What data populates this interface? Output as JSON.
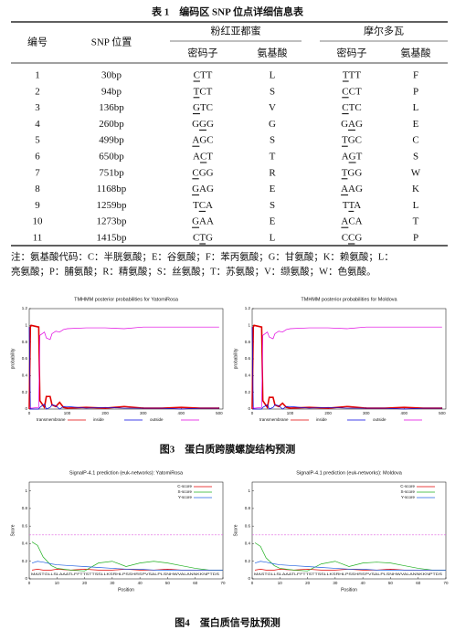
{
  "table_title": "表 1　编码区 SNP 位点详细信息表",
  "table": {
    "headers": [
      "编号",
      "SNP 位置",
      "粉红亚都蜜",
      "摩尔多瓦"
    ],
    "subheaders": [
      "密码子",
      "氨基酸",
      "密码子",
      "氨基酸"
    ],
    "rows": [
      [
        "1",
        "30bp",
        "CTT",
        "L",
        "TTT",
        "F"
      ],
      [
        "2",
        "94bp",
        "TCT",
        "S",
        "CCT",
        "P"
      ],
      [
        "3",
        "136bp",
        "GTC",
        "V",
        "CTC",
        "L"
      ],
      [
        "4",
        "260bp",
        "GGG",
        "G",
        "GAG",
        "E"
      ],
      [
        "5",
        "499bp",
        "AGC",
        "S",
        "TGC",
        "C"
      ],
      [
        "6",
        "650bp",
        "ACT",
        "T",
        "AGT",
        "S"
      ],
      [
        "7",
        "751bp",
        "CGG",
        "R",
        "TGG",
        "W"
      ],
      [
        "8",
        "1168bp",
        "GAG",
        "E",
        "AAG",
        "K"
      ],
      [
        "9",
        "1259bp",
        "TCA",
        "S",
        "TTA",
        "L"
      ],
      [
        "10",
        "1273bp",
        "GAA",
        "E",
        "ACA",
        "T"
      ],
      [
        "11",
        "1415bp",
        "CTG",
        "L",
        "CCG",
        "P"
      ]
    ],
    "underlined_base": [
      0,
      0,
      0,
      1,
      0,
      1,
      0,
      0,
      1,
      0,
      1
    ],
    "note": [
      "注：氨基酸代码：C：半胱氨酸；E：谷氨酸；F：苯丙氨酸；G：甘氨酸；K：赖氨酸；L：",
      "亮氨酸；P：脯氨酸；R：精氨酸；S：丝氨酸；T：苏氨酸；V：缬氨酸；W：色氨酸。"
    ]
  },
  "figures": [
    {
      "caption": "图3　蛋白质跨膜螺旋结构预测",
      "charts": [
        {
          "type": "line",
          "title": "TMHMM posterior probabilities for YatomiRosa",
          "ylabel": "probability",
          "xlim": [
            0,
            510
          ],
          "ylim": [
            0,
            1.2
          ],
          "xticks": [
            0,
            100,
            200,
            300,
            400,
            500
          ],
          "yticks": [
            0,
            0.2,
            0.4,
            0.6,
            0.8,
            1,
            1.2
          ],
          "x": [
            0,
            3,
            5,
            25,
            28,
            40,
            45,
            55,
            60,
            70,
            80,
            90,
            100,
            150,
            200,
            250,
            300,
            350,
            400,
            450,
            500
          ],
          "series": [
            {
              "name": "transmembrane",
              "color": "#e00000",
              "values": [
                0,
                0.98,
                1,
                0.98,
                0.1,
                0.02,
                0.15,
                0.15,
                0.05,
                0.03,
                0.08,
                0.02,
                0.01,
                0.02,
                0.01,
                0.03,
                0.01,
                0.01,
                0.02,
                0.01,
                0.01
              ]
            },
            {
              "name": "inside",
              "color": "#0000e0",
              "values": [
                0.98,
                0,
                0,
                0,
                0.02,
                0.06,
                0,
                0.02,
                0.05,
                0.04,
                0,
                0.03,
                0.03,
                0.01,
                0.02,
                0.01,
                0.01,
                0.01,
                0,
                0.01,
                0.01
              ]
            },
            {
              "name": "outside",
              "color": "#e000e0",
              "values": [
                0.02,
                0.02,
                0.01,
                0.02,
                0.88,
                0.92,
                0.85,
                0.83,
                0.9,
                0.93,
                0.92,
                0.95,
                0.96,
                0.97,
                0.97,
                0.96,
                0.98,
                0.98,
                0.98,
                0.98,
                0.98
              ]
            }
          ]
        },
        {
          "type": "line",
          "title": "TMHMM posterior probabilities for Moldova",
          "ylabel": "probability",
          "xlim": [
            0,
            510
          ],
          "ylim": [
            0,
            1.2
          ],
          "xticks": [
            0,
            100,
            200,
            300,
            400,
            500
          ],
          "yticks": [
            0,
            0.2,
            0.4,
            0.6,
            0.8,
            1,
            1.2
          ],
          "x": [
            0,
            3,
            5,
            25,
            28,
            40,
            45,
            55,
            60,
            70,
            80,
            90,
            100,
            150,
            200,
            250,
            300,
            350,
            400,
            450,
            500
          ],
          "series": [
            {
              "name": "transmembrane",
              "color": "#e00000",
              "values": [
                0,
                0.98,
                1,
                0.98,
                0.1,
                0.02,
                0.14,
                0.14,
                0.05,
                0.03,
                0.07,
                0.02,
                0.01,
                0.02,
                0.01,
                0.03,
                0.01,
                0.01,
                0.02,
                0.01,
                0.01
              ]
            },
            {
              "name": "inside",
              "color": "#0000e0",
              "values": [
                0.98,
                0,
                0,
                0,
                0.02,
                0.05,
                0,
                0.02,
                0.05,
                0.04,
                0,
                0.03,
                0.03,
                0.01,
                0.02,
                0.01,
                0.01,
                0.01,
                0,
                0.01,
                0.01
              ]
            },
            {
              "name": "outside",
              "color": "#e000e0",
              "values": [
                0.02,
                0.02,
                0.01,
                0.02,
                0.88,
                0.92,
                0.86,
                0.84,
                0.9,
                0.93,
                0.92,
                0.95,
                0.96,
                0.97,
                0.97,
                0.96,
                0.98,
                0.98,
                0.98,
                0.98,
                0.98
              ]
            }
          ]
        }
      ]
    },
    {
      "caption": "图4　蛋白质信号肽预测",
      "charts": [
        {
          "type": "line",
          "title": "SignalP-4.1 prediction (euk-networks): YatomiRosa",
          "ylabel": "Score",
          "xlabel": "Position",
          "sequence": "MASTGLLSLAAATLFFTTSTTSSLLKSRHLPSSHRSPVSALPLSNHWVALANNKKNPTDS",
          "xlim": [
            0,
            70
          ],
          "ylim": [
            0,
            1.1
          ],
          "xticks": [
            0,
            10,
            20,
            30,
            40,
            50,
            60,
            70
          ],
          "yticks": [
            0,
            0.2,
            0.4,
            0.6,
            0.8,
            1
          ],
          "threshold": 0.5,
          "x": [
            1,
            3,
            5,
            8,
            10,
            15,
            20,
            25,
            30,
            35,
            40,
            45,
            50,
            55,
            60,
            65,
            70
          ],
          "series": [
            {
              "name": "C-score",
              "color": "#e00000",
              "values": [
                0.1,
                0.11,
                0.1,
                0.1,
                0.11,
                0.1,
                0.11,
                0.1,
                0.1,
                0.11,
                0.1,
                0.1,
                0.11,
                0.1,
                0.1,
                0.1,
                0.1
              ]
            },
            {
              "name": "S-score",
              "color": "#20b020",
              "values": [
                0.42,
                0.38,
                0.25,
                0.15,
                0.12,
                0.1,
                0.09,
                0.18,
                0.2,
                0.14,
                0.18,
                0.2,
                0.18,
                0.15,
                0.12,
                0.1,
                0.1
              ]
            },
            {
              "name": "Y-score",
              "color": "#2060e0",
              "values": [
                0.18,
                0.2,
                0.19,
                0.17,
                0.16,
                0.15,
                0.14,
                0.13,
                0.12,
                0.11,
                0.11,
                0.1,
                0.1,
                0.1,
                0.1,
                0.1,
                0.1
              ]
            }
          ]
        },
        {
          "type": "line",
          "title": "SignalP-4.1 prediction (euk-networks): Moldova",
          "ylabel": "Score",
          "xlabel": "Position",
          "sequence": "MASTGLLSLAAATLFFTTSTTSSLLKSRHLPSSHRSPVSALPLSNHWVALANNKKNPTDS",
          "xlim": [
            0,
            70
          ],
          "ylim": [
            0,
            1.1
          ],
          "xticks": [
            0,
            10,
            20,
            30,
            40,
            50,
            60,
            70
          ],
          "yticks": [
            0,
            0.2,
            0.4,
            0.6,
            0.8,
            1
          ],
          "threshold": 0.5,
          "x": [
            1,
            3,
            5,
            8,
            10,
            15,
            20,
            25,
            30,
            35,
            40,
            45,
            50,
            55,
            60,
            65,
            70
          ],
          "series": [
            {
              "name": "C-score",
              "color": "#e00000",
              "values": [
                0.1,
                0.11,
                0.1,
                0.1,
                0.11,
                0.1,
                0.11,
                0.1,
                0.1,
                0.11,
                0.1,
                0.1,
                0.11,
                0.1,
                0.1,
                0.1,
                0.1
              ]
            },
            {
              "name": "S-score",
              "color": "#20b020",
              "values": [
                0.41,
                0.37,
                0.24,
                0.15,
                0.12,
                0.1,
                0.09,
                0.17,
                0.2,
                0.14,
                0.18,
                0.19,
                0.18,
                0.15,
                0.12,
                0.1,
                0.1
              ]
            },
            {
              "name": "Y-score",
              "color": "#2060e0",
              "values": [
                0.18,
                0.2,
                0.19,
                0.17,
                0.16,
                0.15,
                0.14,
                0.13,
                0.12,
                0.11,
                0.11,
                0.1,
                0.1,
                0.1,
                0.1,
                0.1,
                0.1
              ]
            }
          ]
        }
      ]
    }
  ]
}
